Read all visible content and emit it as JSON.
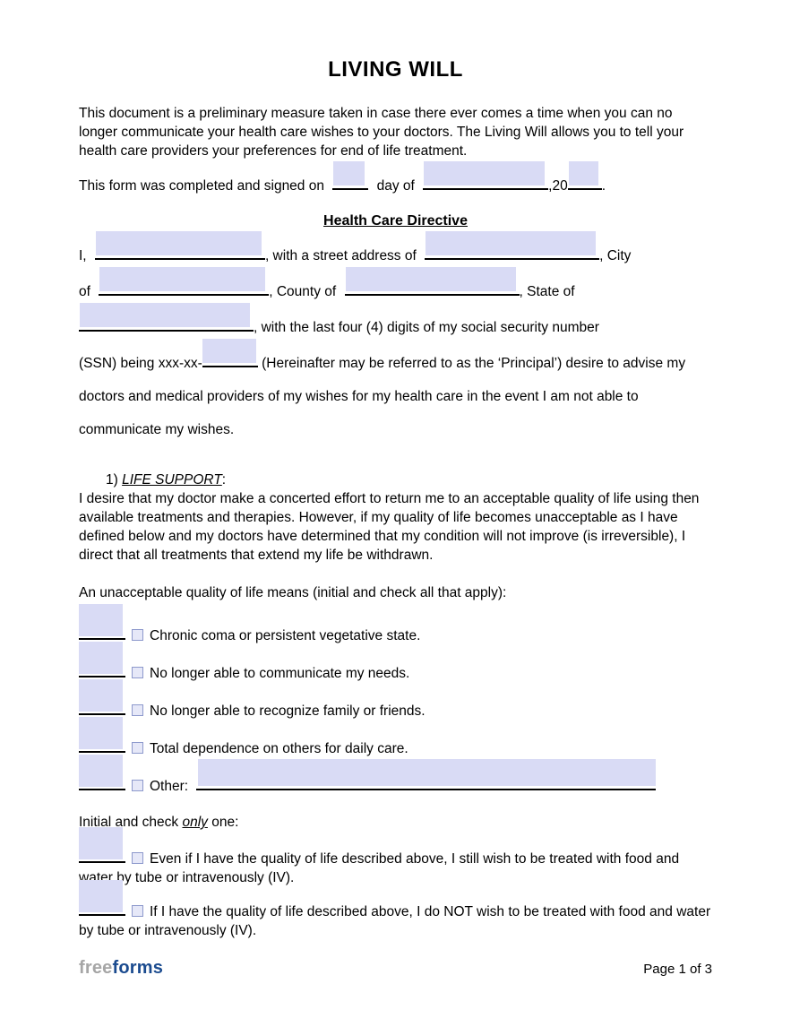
{
  "title": "LIVING WILL",
  "intro": "This document is a preliminary measure taken in case there ever comes a time when you can no longer communicate your health care wishes to your doctors. The Living Will allows you to tell your health care providers your preferences for end of life treatment.",
  "signed_line": {
    "part1": "This form was completed and signed on",
    "part2": "day of",
    "part3": ",20",
    "part4": "."
  },
  "directive": {
    "heading": "Health Care Directive",
    "line1_pre": "I,",
    "line1_mid": ", with a street address of",
    "line1_post": ", City",
    "line2_pre": "of",
    "line2_mid": ", County of",
    "line2_post": ", State of",
    "line3_post": ", with the last four (4) digits of my social security number",
    "line4_pre": "(SSN) being xxx-xx-",
    "line4_post": "(Hereinafter may be referred to as the ‘Principal’) desire to advise my",
    "line5": "doctors and medical providers of my wishes for my health care in the event I am not able to",
    "line6": "communicate my wishes."
  },
  "life_support": {
    "number": "1)",
    "heading": "LIFE SUPPORT",
    "heading_colon": ":",
    "body": "I desire that my doctor make a concerted effort to return me to an acceptable quality of life using then available treatments and therapies. However, if my quality of life becomes unacceptable as I have defined below and my doctors have determined that my condition will not improve (is irreversible), I direct that all treatments that extend my life be withdrawn.",
    "apply_prompt": "An unacceptable quality of life means (initial and check all that apply):",
    "options": [
      {
        "label": "Chronic coma or persistent vegetative state."
      },
      {
        "label": "No longer able to communicate my needs."
      },
      {
        "label": "No longer able to recognize family or friends."
      },
      {
        "label": "Total dependence on others for daily care."
      },
      {
        "label": "Other:"
      }
    ],
    "only_prompt_pre": "Initial and check",
    "only_prompt_em": "only",
    "only_prompt_post": "one:",
    "exclusive_options": [
      "Even if I have the quality of life described above, I still wish to be treated with food and water by tube or intravenously (IV).",
      "If I have the quality of life described above, I do NOT wish to be treated with food and water by tube or intravenously (IV)."
    ]
  },
  "footer": {
    "logo_free": "free",
    "logo_forms": "forms",
    "page": "Page 1 of 3"
  },
  "colors": {
    "field_fill": "#d9dbf5",
    "checkbox_border": "#8d99cc",
    "logo_free": "#a6a6a6",
    "logo_forms": "#1b4b8f"
  }
}
